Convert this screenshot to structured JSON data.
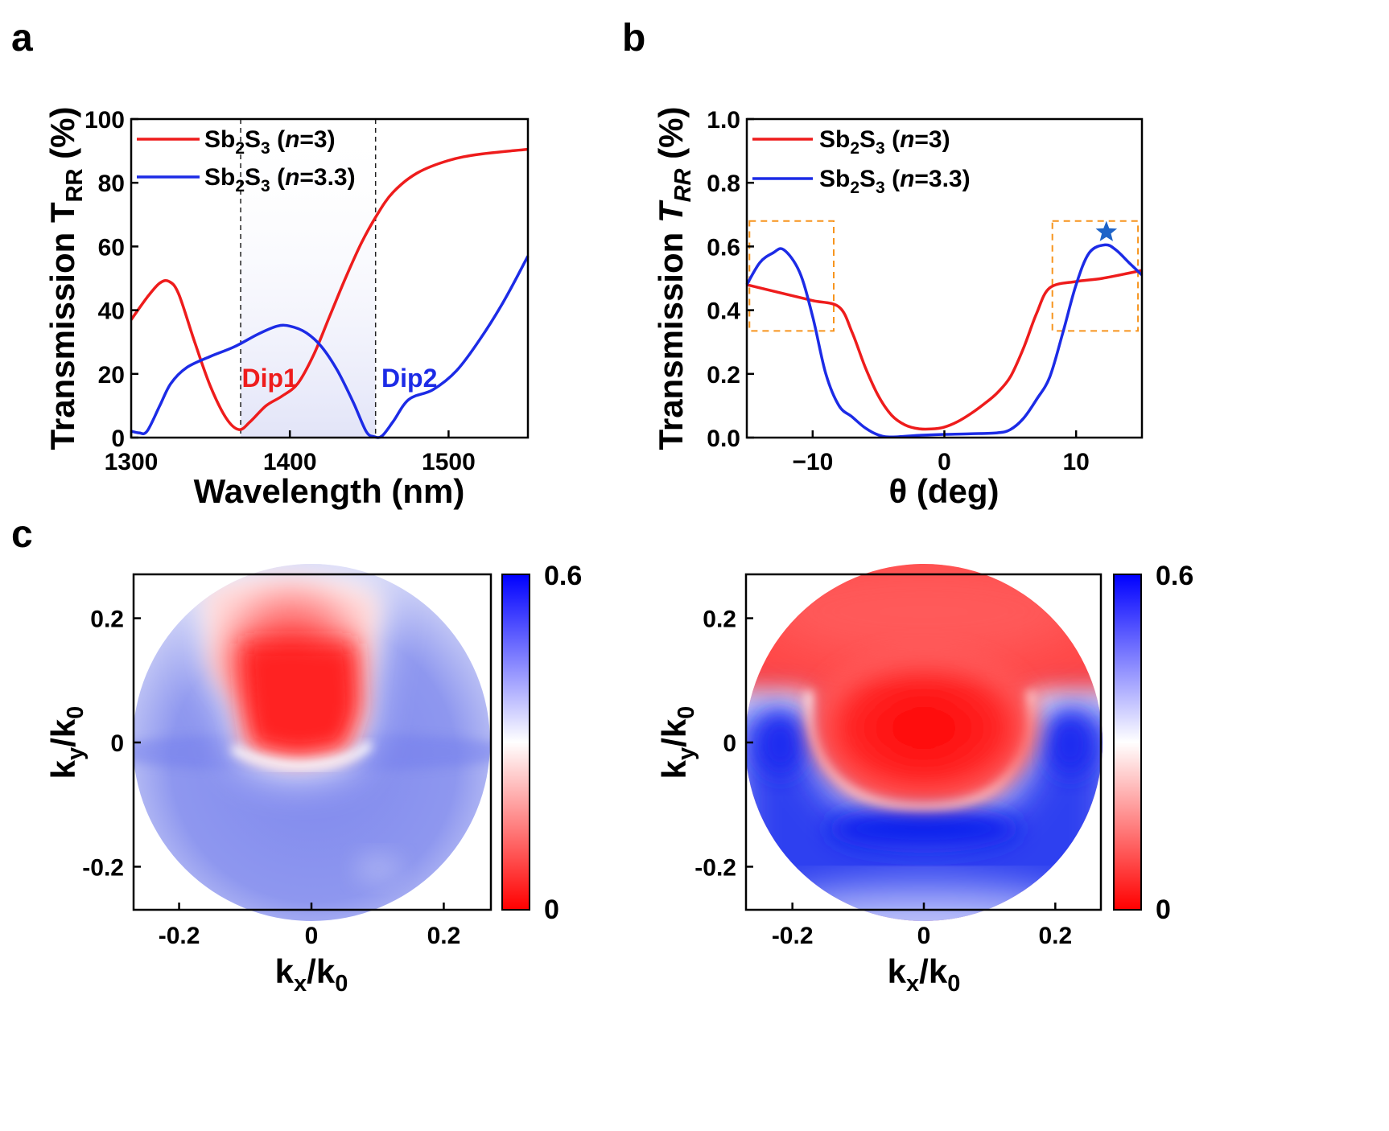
{
  "panels": {
    "a": {
      "label": "a"
    },
    "b": {
      "label": "b"
    },
    "c": {
      "label": "c"
    }
  },
  "chart_data": [
    {
      "id": "a",
      "type": "line",
      "xlabel": "Wavelength (nm)",
      "ylabel": "Transmission T_RR (%)",
      "xlim": [
        1300,
        1550
      ],
      "ylim": [
        0,
        100
      ],
      "xticks": [
        1300,
        1400,
        1500
      ],
      "xtick_labels": [
        "1300",
        "1400",
        "1500"
      ],
      "yticks": [
        0,
        20,
        40,
        60,
        80,
        100
      ],
      "ytick_labels": [
        "0",
        "20",
        "40",
        "60",
        "80",
        "100"
      ],
      "legend": [
        "Sb2S3 (n=3)",
        "Sb2S3 (n=3.3)"
      ],
      "legend_position": "top-left",
      "shaded_band": [
        1369,
        1454
      ],
      "dashed_lines": [
        1369,
        1454
      ],
      "annotations": [
        {
          "text": "Dip1",
          "x": 1390,
          "y": 19,
          "color": "#ee1c1c"
        },
        {
          "text": "Dip2",
          "x": 1478,
          "y": 19,
          "color": "#1c2be6"
        }
      ],
      "series": [
        {
          "name": "Sb2S3 (n=3)",
          "color": "#ee1c1c",
          "x": [
            1300,
            1310,
            1318,
            1324,
            1330,
            1340,
            1350,
            1360,
            1368,
            1375,
            1385,
            1395,
            1405,
            1415,
            1425,
            1435,
            1445,
            1455,
            1465,
            1480,
            1500,
            1520,
            1550
          ],
          "y": [
            37,
            44,
            48.5,
            49,
            45,
            30,
            16,
            6,
            2.5,
            5,
            10,
            13,
            17,
            26,
            38,
            50,
            61,
            70,
            77,
            83,
            87,
            89,
            90.5
          ]
        },
        {
          "name": "Sb2S3 (n=3.3)",
          "color": "#1c2be6",
          "x": [
            1300,
            1305,
            1310,
            1318,
            1325,
            1335,
            1350,
            1365,
            1380,
            1392,
            1400,
            1410,
            1420,
            1430,
            1440,
            1448,
            1453,
            1458,
            1465,
            1475,
            1490,
            1505,
            1520,
            1535,
            1550
          ],
          "y": [
            2,
            1.5,
            2,
            10,
            17,
            22,
            25.5,
            28.5,
            32.5,
            35,
            35,
            33,
            28.5,
            21,
            11,
            2,
            0.3,
            0.5,
            5,
            12,
            15,
            21,
            31,
            43,
            57
          ]
        }
      ]
    },
    {
      "id": "b",
      "type": "line",
      "xlabel": "θ (deg)",
      "ylabel": "Transmission T_RR (%)",
      "xlim": [
        -15,
        15
      ],
      "ylim": [
        0,
        1
      ],
      "xticks": [
        -10,
        0,
        10
      ],
      "xtick_labels": [
        "−10",
        "0",
        "10"
      ],
      "yticks": [
        0,
        0.2,
        0.4,
        0.6,
        0.8,
        1.0
      ],
      "ytick_labels": [
        "0.0",
        "0.2",
        "0.4",
        "0.6",
        "0.8",
        "1.0"
      ],
      "legend": [
        "Sb2S3 (n=3)",
        "Sb2S3 (n=3.3)"
      ],
      "legend_position": "top-left",
      "highlight_boxes": [
        {
          "x": [
            -14.8,
            -8.4
          ],
          "y": [
            0.335,
            0.68
          ]
        },
        {
          "x": [
            8.2,
            14.7
          ],
          "y": [
            0.335,
            0.68
          ]
        }
      ],
      "marker": {
        "symbol": "star",
        "x": 12.3,
        "y": 0.645
      },
      "series": [
        {
          "name": "Sb2S3 (n=3)",
          "color": "#ee1c1c",
          "x": [
            -15,
            -12,
            -10,
            -8,
            -7,
            -6,
            -5,
            -4,
            -3,
            -2,
            -1,
            0,
            1,
            2,
            3,
            4,
            5,
            6,
            7,
            8,
            10,
            12,
            15
          ],
          "y": [
            0.48,
            0.45,
            0.43,
            0.41,
            0.33,
            0.22,
            0.13,
            0.07,
            0.04,
            0.028,
            0.027,
            0.033,
            0.05,
            0.075,
            0.105,
            0.14,
            0.19,
            0.28,
            0.39,
            0.47,
            0.49,
            0.5,
            0.525
          ]
        },
        {
          "name": "Sb2S3 (n=3.3)",
          "color": "#1c2be6",
          "x": [
            -15,
            -14,
            -13,
            -12.2,
            -11,
            -10,
            -9,
            -8,
            -7,
            -6,
            -5,
            -4,
            -2,
            0,
            2,
            4,
            5,
            6,
            7,
            8,
            9,
            10,
            11,
            12.2,
            13,
            14,
            15
          ],
          "y": [
            0.48,
            0.55,
            0.58,
            0.59,
            0.52,
            0.38,
            0.2,
            0.1,
            0.065,
            0.03,
            0.008,
            0.002,
            0.007,
            0.01,
            0.012,
            0.015,
            0.025,
            0.06,
            0.12,
            0.19,
            0.33,
            0.48,
            0.58,
            0.605,
            0.59,
            0.55,
            0.51
          ]
        }
      ]
    },
    {
      "id": "c-left",
      "type": "heatmap",
      "xlabel": "k_x/k_0",
      "ylabel": "k_y/k_0",
      "xlim": [
        -0.27,
        0.27
      ],
      "ylim": [
        -0.27,
        0.27
      ],
      "xticks": [
        -0.2,
        0,
        0.2
      ],
      "xtick_labels": [
        "-0.2",
        "0",
        "0.2"
      ],
      "yticks": [
        -0.2,
        0,
        0.2
      ],
      "ytick_labels": [
        "-0.2",
        "0",
        "0.2"
      ],
      "colorbar": {
        "min": 0,
        "max": 0.6,
        "min_label": "0",
        "max_label": "0.6",
        "low_color": "#ff0000",
        "mid_color": "#ffffff",
        "high_color": "#0000ff"
      }
    },
    {
      "id": "c-right",
      "type": "heatmap",
      "xlabel": "k_x/k_0",
      "ylabel": "k_y/k_0",
      "xlim": [
        -0.27,
        0.27
      ],
      "ylim": [
        -0.27,
        0.27
      ],
      "xticks": [
        -0.2,
        0,
        0.2
      ],
      "xtick_labels": [
        "-0.2",
        "0",
        "0.2"
      ],
      "yticks": [
        -0.2,
        0,
        0.2
      ],
      "ytick_labels": [
        "-0.2",
        "0",
        "0.2"
      ],
      "colorbar": {
        "min": 0,
        "max": 0.6,
        "min_label": "0",
        "max_label": "0.6",
        "low_color": "#ff0000",
        "mid_color": "#ffffff",
        "high_color": "#0000ff"
      }
    }
  ]
}
